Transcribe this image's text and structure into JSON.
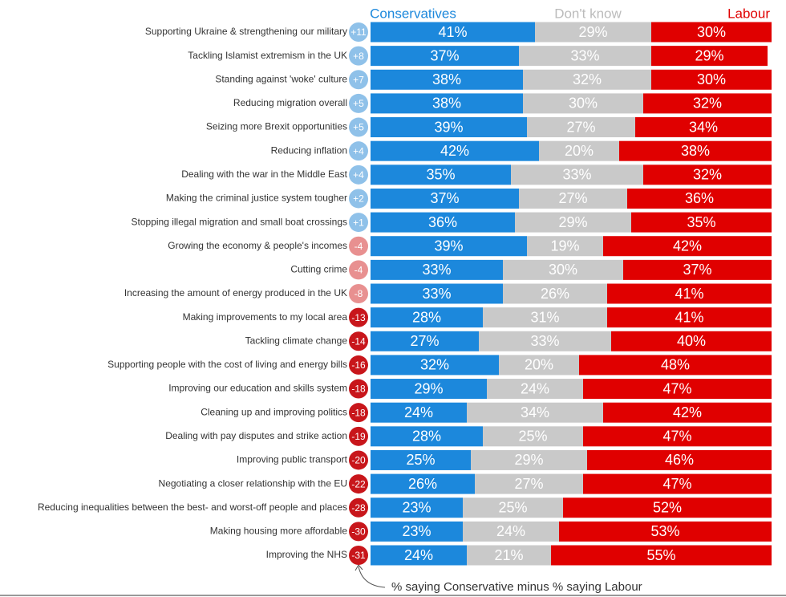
{
  "chart_data": {
    "type": "stacked-bar-horizontal",
    "categories": [
      "Supporting Ukraine & strengthening our military",
      "Tackling Islamist extremism in the UK",
      "Standing against 'woke' culture",
      "Reducing migration overall",
      "Seizing more Brexit opportunities",
      "Reducing inflation",
      "Dealing with the war in the Middle East",
      "Making the criminal justice system tougher",
      "Stopping illegal migration and small boat crossings",
      "Growing the economy & people's incomes",
      "Cutting crime",
      "Increasing the amount of energy produced in the UK",
      "Making improvements to my local area",
      "Tackling climate change",
      "Supporting people with the cost of living and energy bills",
      "Improving our education and skills system",
      "Cleaning up and improving politics",
      "Dealing with pay disputes and strike action",
      "Improving public transport",
      "Negotiating a closer relationship with the EU",
      "Reducing inequalities between the best- and worst-off people and places",
      "Making housing more affordable",
      "Improving the NHS"
    ],
    "series": [
      {
        "name": "Conservatives",
        "color": "#1c88dc",
        "values": [
          41,
          37,
          38,
          38,
          39,
          42,
          35,
          37,
          36,
          39,
          33,
          33,
          28,
          27,
          32,
          29,
          24,
          28,
          25,
          26,
          23,
          23,
          24
        ],
        "value_labels": [
          "41%",
          "37%",
          "38%",
          "38%",
          "39%",
          "42%",
          "35%",
          "37%",
          "36%",
          "39%",
          "33%",
          "33%",
          "28%",
          "27%",
          "32%",
          "29%",
          "24%",
          "28%",
          "25%",
          "26%",
          "23%",
          "23%",
          "24%"
        ]
      },
      {
        "name": "Don't know",
        "color": "#c9c9c9",
        "values": [
          29,
          33,
          32,
          30,
          27,
          20,
          33,
          27,
          29,
          19,
          30,
          26,
          31,
          33,
          20,
          24,
          34,
          25,
          29,
          27,
          25,
          24,
          21
        ],
        "value_labels": [
          "29%",
          "33%",
          "32%",
          "30%",
          "27%",
          "20%",
          "33%",
          "27%",
          "29%",
          "19%",
          "30%",
          "26%",
          "31%",
          "33%",
          "20%",
          "24%",
          "34%",
          "25%",
          "29%",
          "27%",
          "25%",
          "24%",
          "21%"
        ]
      },
      {
        "name": "Labour",
        "color": "#e00000",
        "values": [
          30,
          29,
          30,
          32,
          34,
          38,
          32,
          36,
          35,
          42,
          37,
          41,
          41,
          40,
          48,
          47,
          42,
          47,
          46,
          47,
          52,
          53,
          55
        ],
        "value_labels": [
          "30%",
          "29%",
          "30%",
          "32%",
          "34%",
          "38%",
          "32%",
          "36%",
          "35%",
          "42%",
          "37%",
          "41%",
          "41%",
          "40%",
          "48%",
          "47%",
          "42%",
          "47%",
          "46%",
          "47%",
          "52%",
          "53%",
          "55%"
        ]
      }
    ],
    "net_values": [
      11,
      8,
      7,
      5,
      5,
      4,
      4,
      2,
      1,
      -4,
      -4,
      -8,
      -13,
      -14,
      -16,
      -18,
      -18,
      -19,
      -20,
      -22,
      -28,
      -30,
      -31
    ],
    "net_labels": [
      "+11",
      "+8",
      "+7",
      "+5",
      "+5",
      "+4",
      "+4",
      "+2",
      "+1",
      "-4",
      "-4",
      "-8",
      "-13",
      "-14",
      "-16",
      "-18",
      "-18",
      "-19",
      "-20",
      "-22",
      "-28",
      "-30",
      "-31"
    ],
    "net_colors": [
      "#8fc1e9",
      "#8fc1e9",
      "#8fc1e9",
      "#8fc1e9",
      "#8fc1e9",
      "#8fc1e9",
      "#8fc1e9",
      "#8fc1e9",
      "#8fc1e9",
      "#e89090",
      "#e89090",
      "#e89090",
      "#c8161b",
      "#c8161b",
      "#c8161b",
      "#c8161b",
      "#c8161b",
      "#c8161b",
      "#c8161b",
      "#c8161b",
      "#c8161b",
      "#c8161b",
      "#c8161b"
    ],
    "annotation": "% saying Conservative minus % saying Labour",
    "xlim": [
      0,
      100
    ]
  }
}
